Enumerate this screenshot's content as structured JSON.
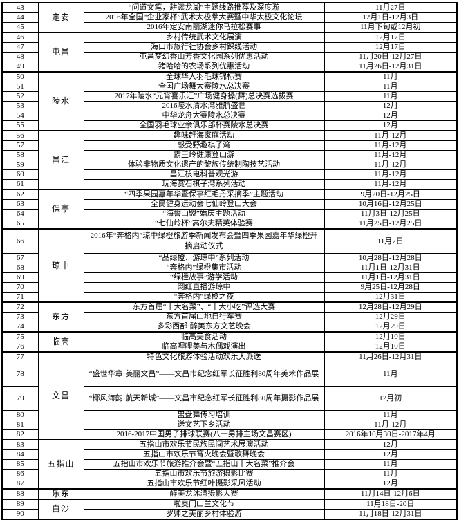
{
  "table": {
    "groups": [
      {
        "region": "定安",
        "rows": [
          {
            "no": "43",
            "activity": "“问道文笔，耕读龙湖”主题线路推荐及深度游",
            "date": "11月27日"
          },
          {
            "no": "44",
            "activity": "2016年全国“企业家杯”武术太极拳大赛暨中华太极文化论坛",
            "date": "12月1日-12月3日"
          },
          {
            "no": "45",
            "activity": "2016年定安南丽湖迷你马拉松赛事",
            "date": "11月下旬或12月初"
          }
        ]
      },
      {
        "region": "屯昌",
        "rows": [
          {
            "no": "46",
            "activity": "乡村传统武术文化展演",
            "date": "12月17日"
          },
          {
            "no": "47",
            "activity": "海口市旅行社协会乡村踩线活动",
            "date": "12月17日"
          },
          {
            "no": "48",
            "activity": "屯昌梦幻香山芳香文化园系列优惠活动",
            "date": "11月20日-12月27日"
          },
          {
            "no": "49",
            "activity": "猪哈哈的农场系列优惠活动",
            "date": "11月26日-12月31日"
          }
        ]
      },
      {
        "region": "陵水",
        "rows": [
          {
            "no": "50",
            "activity": "全球华人羽毛球锦标赛",
            "date": "11月"
          },
          {
            "no": "51",
            "activity": "全国广场舞大赛陵水总决赛",
            "date": "11月"
          },
          {
            "no": "52",
            "activity": "2017年陵水“元宵喜乐汇”广场健身操(舞)总决赛选拔赛",
            "date": "11月"
          },
          {
            "no": "53",
            "activity": "2016陵水清水湾雅航盛世",
            "date": "12月"
          },
          {
            "no": "54",
            "activity": "中华龙舟大赛陵水总决赛",
            "date": "12月"
          },
          {
            "no": "55",
            "activity": "全国羽毛球业余俱乐部杯赛陵水总决赛",
            "date": "12月"
          }
        ]
      },
      {
        "region": "昌江",
        "rows": [
          {
            "no": "56",
            "activity": "趣味赶海家庭活动",
            "date": "11月-12月"
          },
          {
            "no": "57",
            "activity": "感受野趣棋子湾",
            "date": "11月-12月"
          },
          {
            "no": "58",
            "activity": "霸王岭健康登山游",
            "date": "11月-12月"
          },
          {
            "no": "59",
            "activity": "体验非物质文化遗产的黎族传统制陶技艺活动",
            "date": "11月-12月"
          },
          {
            "no": "60",
            "activity": "昌江核电科普观光游",
            "date": "11月-12月"
          },
          {
            "no": "61",
            "activity": "玩海赏石棋子湾系列活动",
            "date": "11月-12月"
          }
        ]
      },
      {
        "region": "保亭",
        "rows": [
          {
            "no": "62",
            "activity": "“四季果园嘉年华暨保亭红毛丹采摘季”主题活动",
            "date": "9月20日-12月25日"
          },
          {
            "no": "63",
            "activity": "全民健身运动会七仙岭登山大会",
            "date": "10月16日-12月25日"
          },
          {
            "no": "64",
            "activity": "“海誓山盟”婚庆主题活动",
            "date": "11月3日-12月25日"
          },
          {
            "no": "65",
            "activity": "“七仙岭杯”高尔夫精英体验赛",
            "date": "11月25日-12月25日"
          }
        ]
      },
      {
        "region": "琼中",
        "rows": [
          {
            "no": "66",
            "activity": "2016年“奔格内”琼中绿橙旅游季新闻发布会暨四季果园嘉年华绿橙开摘启动仪式",
            "date": "11月7日",
            "tall": true
          },
          {
            "no": "67",
            "activity": "“品绿橙、游琼中”系列活动",
            "date": "10月28日-12月28日"
          },
          {
            "no": "68",
            "activity": "“奔格内”绿橙集市活动",
            "date": "11月1日-12月31日"
          },
          {
            "no": "69",
            "activity": "“绿橙故事”游学活动",
            "date": "11月1日-12月31日"
          },
          {
            "no": "70",
            "activity": "网红直播游琼中",
            "date": "9月25日-12月28日"
          },
          {
            "no": "71",
            "activity": "“奔格内”绿橙之夜",
            "date": "12月31日"
          }
        ]
      },
      {
        "region": "东方",
        "rows": [
          {
            "no": "72",
            "activity": "东方首届“十大名菜”、“十大小吃”评选大赛",
            "date": "12月28日-12月29日"
          },
          {
            "no": "73",
            "activity": "东方首届山地自行车赛",
            "date": "12月29日"
          },
          {
            "no": "74",
            "activity": "多彩西部·醉美东方文艺晚会",
            "date": "12月29日"
          }
        ]
      },
      {
        "region": "临高",
        "rows": [
          {
            "no": "75",
            "activity": "临高美食活动",
            "date": "12月10日"
          },
          {
            "no": "76",
            "activity": "临高哩哩美与木偶戏演出",
            "date": "12月10日"
          }
        ]
      },
      {
        "region": "文昌",
        "rows": [
          {
            "no": "77",
            "activity": "特色文化旅游体验活动欢乐大派送",
            "date": "11月26日-12月31日"
          },
          {
            "no": "78",
            "activity": "“盛世华章·美丽文昌”——文昌市纪念红军长征胜利80周年美术作品展",
            "date": "11月",
            "tall": true
          },
          {
            "no": "79",
            "activity": "“椰风海韵·航天新城”——文昌市纪念红军长征胜利80周年摄影作品展",
            "date": "12月初",
            "tall": true
          },
          {
            "no": "80",
            "activity": "盅盘舞传习培训",
            "date": "11月"
          },
          {
            "no": "81",
            "activity": "送文艺下乡活动",
            "date": "11月-12月"
          },
          {
            "no": "82",
            "activity": "2016-2017中国男子排球联赛(八一男排主场文昌赛区)",
            "date": "2016年10月30日-2017年4月"
          }
        ]
      },
      {
        "region": "五指山",
        "rows": [
          {
            "no": "83",
            "activity": "五指山市欢乐节民族民间艺术展演活动",
            "date": "12月"
          },
          {
            "no": "84",
            "activity": "五指山市欢乐节篝火晚会暨歌舞晚会",
            "date": "12月"
          },
          {
            "no": "85",
            "activity": "五指山市欢乐节旅游推介会暨“五指山十大名菜”推介会",
            "date": "11月"
          },
          {
            "no": "86",
            "activity": "五指山市欢乐节旅游摄影比赛",
            "date": "11月"
          },
          {
            "no": "87",
            "activity": "五指山市欢乐节红叶摄影采风活动",
            "date": "12月"
          }
        ]
      },
      {
        "region": "乐东",
        "rows": [
          {
            "no": "88",
            "activity": "醉美龙沐湾摄影大赛",
            "date": "11月14日-12月6日"
          }
        ]
      },
      {
        "region": "白沙",
        "rows": [
          {
            "no": "89",
            "activity": "啦奥门山兰文化节",
            "date": "11月18日-20日"
          },
          {
            "no": "90",
            "activity": "罗帅之美丽乡村体验游",
            "date": "11月18日-12月31日"
          }
        ]
      }
    ]
  }
}
